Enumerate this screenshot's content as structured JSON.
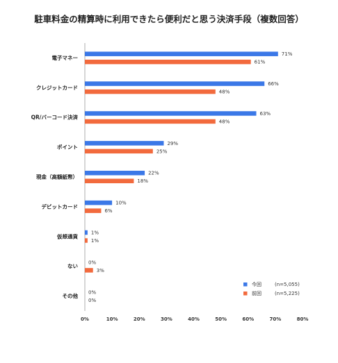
{
  "chart_data": {
    "type": "bar",
    "orientation": "horizontal",
    "title": "駐車料金の精算時に利用できたら便利だと思う決済手段（複数回答）",
    "categories": [
      "電子マネー",
      "クレジットカード",
      "QR/バーコード決済",
      "ポイント",
      "現金（高額紙幣）",
      "デビットカード",
      "仮想通貨",
      "ない",
      "その他"
    ],
    "series": [
      {
        "name": "今回",
        "sample": "(n=5,055)",
        "color": "#3b78e7",
        "values": [
          71,
          66,
          63,
          29,
          22,
          10,
          1,
          0,
          0
        ]
      },
      {
        "name": "前回",
        "sample": "(n=5,225)",
        "color": "#f26a3d",
        "values": [
          61,
          48,
          48,
          25,
          18,
          6,
          1,
          3,
          0
        ]
      }
    ],
    "value_suffix": "%",
    "xlim": [
      0,
      80
    ],
    "xticks": [
      "0%",
      "10%",
      "20%",
      "30%",
      "40%",
      "50%",
      "60%",
      "70%",
      "80%"
    ],
    "grid": false,
    "legend_position": "bottom-right"
  }
}
